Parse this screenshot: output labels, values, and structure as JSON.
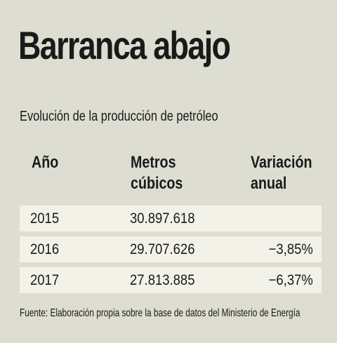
{
  "title": "Barranca abajo",
  "subtitle": "Evolución de la producción de petróleo",
  "source": "Fuente: Elaboración propia sobre la base de datos del Ministerio de Energía",
  "colors": {
    "background": "#deddd1",
    "row_background": "#f3f2e9",
    "text": "#1a1a1a"
  },
  "chart_data": {
    "type": "table",
    "title": "Barranca abajo",
    "subtitle": "Evolución de la producción de petróleo",
    "columns": [
      "Año",
      "Metros cúbicos",
      "Variación anual"
    ],
    "rows": [
      {
        "year": "2015",
        "value": "30.897.618",
        "variation": ""
      },
      {
        "year": "2016",
        "value": "29.707.626",
        "variation": "−3,85%"
      },
      {
        "year": "2017",
        "value": "27.813.885",
        "variation": "−6,37%"
      }
    ]
  }
}
